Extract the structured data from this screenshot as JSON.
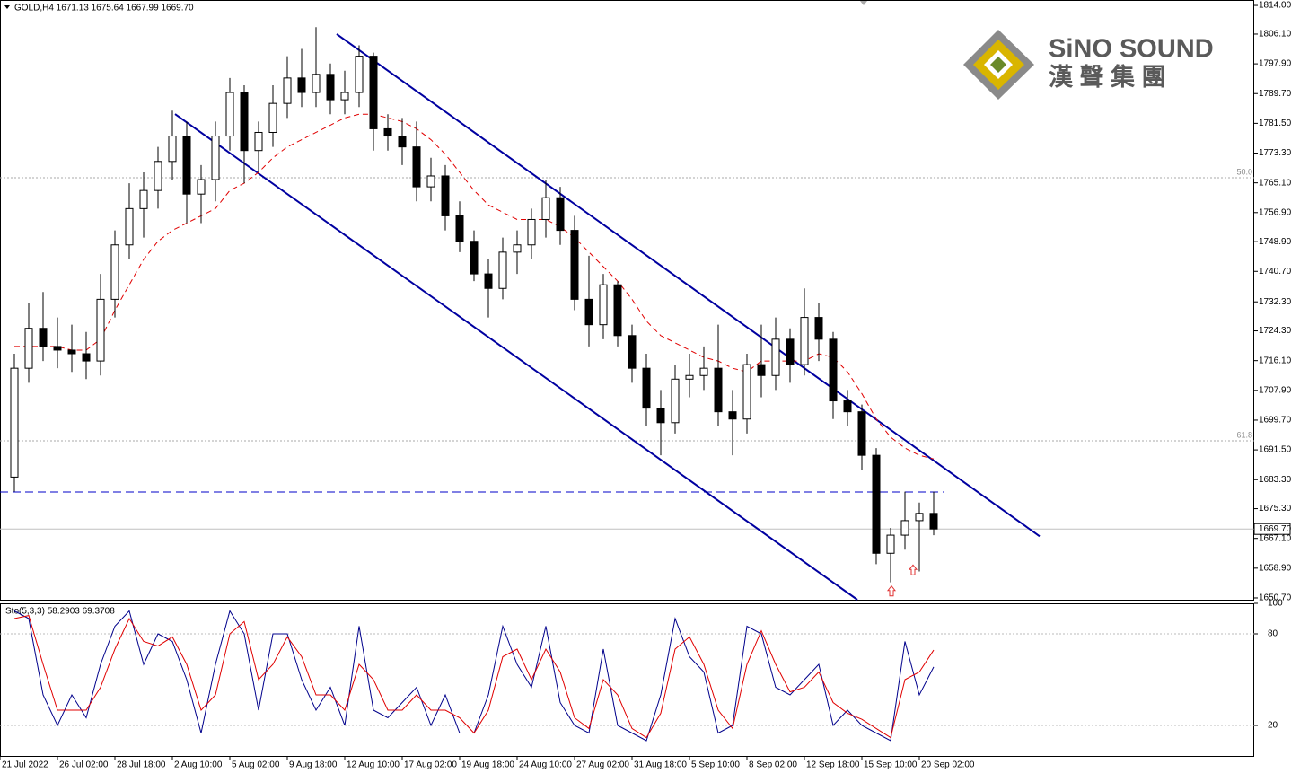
{
  "header": "GOLD,H4  1671.13 1675.64 1667.99 1669.70",
  "logo": {
    "name": "SiNO SOUND",
    "chinese": "漢 聲 集 團"
  },
  "chart_data": [
    {
      "type": "candlestick",
      "xlim": [
        0,
        349.25
      ],
      "ylim": [
        1650.2,
        1815.0
      ],
      "yticks": [
        {
          "value": 1650.7,
          "label": "1650.70"
        },
        {
          "value": 1658.9,
          "label": "1658.90"
        },
        {
          "value": 1667.1,
          "label": "1667.10"
        },
        {
          "value": 1675.3,
          "label": "1675.30"
        },
        {
          "value": 1683.3,
          "label": "1683.30"
        },
        {
          "value": 1691.5,
          "label": "1691.50"
        },
        {
          "value": 1699.7,
          "label": "1699.70"
        },
        {
          "value": 1707.9,
          "label": "1707.90"
        },
        {
          "value": 1716.1,
          "label": "1716.10"
        },
        {
          "value": 1724.3,
          "label": "1724.30"
        },
        {
          "value": 1732.3,
          "label": "1732.30"
        },
        {
          "value": 1740.7,
          "label": "1740.70"
        },
        {
          "value": 1748.9,
          "label": "1748.90"
        },
        {
          "value": 1756.9,
          "label": "1756.90"
        },
        {
          "value": 1765.1,
          "label": "1765.10"
        },
        {
          "value": 1773.3,
          "label": "1773.30"
        },
        {
          "value": 1781.5,
          "label": "1781.50"
        },
        {
          "value": 1789.7,
          "label": "1789.70"
        },
        {
          "value": 1797.9,
          "label": "1797.90"
        },
        {
          "value": 1806.1,
          "label": "1806.10"
        },
        {
          "value": 1814.0,
          "label": "1814.00"
        }
      ],
      "x": [
        4,
        8,
        12,
        16,
        20,
        24,
        28,
        32,
        36,
        40,
        44,
        48,
        52,
        56,
        60,
        64,
        68,
        72,
        76,
        80,
        84,
        88,
        92,
        96,
        100,
        104,
        108,
        112,
        116,
        120,
        124,
        128,
        132,
        136,
        140,
        144,
        148,
        152,
        156,
        160,
        164,
        168,
        172,
        176,
        180,
        184,
        188,
        192,
        196,
        200,
        204,
        208,
        212,
        216,
        220,
        224,
        228,
        232,
        236,
        240,
        244,
        248,
        252,
        256,
        260
      ],
      "open": [
        1684,
        1714,
        1725,
        1720,
        1719,
        1718,
        1716,
        1733,
        1748,
        1758,
        1763,
        1771,
        1778,
        1762,
        1766,
        1778,
        1790,
        1774,
        1779,
        1787,
        1794,
        1790,
        1795,
        1788,
        1790,
        1800,
        1780,
        1778,
        1775,
        1764,
        1767,
        1756,
        1749,
        1740,
        1736,
        1746,
        1748,
        1755,
        1761,
        1752,
        1733,
        1726,
        1737,
        1723,
        1714,
        1703,
        1699,
        1711,
        1712,
        1714,
        1702,
        1700,
        1715,
        1712,
        1722,
        1715,
        1728,
        1722,
        1705,
        1702,
        1690,
        1663,
        1668,
        1672,
        1674
      ],
      "high": [
        1718,
        1732,
        1735,
        1728,
        1726,
        1724,
        1740,
        1752,
        1765,
        1768,
        1775,
        1785,
        1782,
        1770,
        1782,
        1794,
        1792,
        1782,
        1792,
        1800,
        1802,
        1808,
        1798,
        1796,
        1803,
        1801,
        1784,
        1783,
        1782,
        1772,
        1770,
        1760,
        1752,
        1744,
        1750,
        1752,
        1758,
        1766,
        1764,
        1756,
        1745,
        1740,
        1738,
        1726,
        1718,
        1708,
        1715,
        1718,
        1720,
        1726,
        1708,
        1718,
        1726,
        1728,
        1725,
        1736,
        1732,
        1724,
        1708,
        1704,
        1692,
        1670,
        1680,
        1677,
        1680
      ],
      "low": [
        1680,
        1710,
        1716,
        1714,
        1713,
        1711,
        1712,
        1728,
        1744,
        1750,
        1758,
        1766,
        1754,
        1754,
        1760,
        1774,
        1765,
        1768,
        1775,
        1783,
        1786,
        1786,
        1784,
        1784,
        1786,
        1774,
        1774,
        1770,
        1760,
        1760,
        1752,
        1746,
        1738,
        1728,
        1733,
        1740,
        1744,
        1750,
        1748,
        1730,
        1720,
        1722,
        1720,
        1710,
        1698,
        1690,
        1696,
        1706,
        1708,
        1698,
        1690,
        1696,
        1706,
        1708,
        1710,
        1712,
        1716,
        1700,
        1698,
        1686,
        1660,
        1655,
        1664,
        1658,
        1668
      ],
      "close": [
        1714,
        1725,
        1720,
        1719,
        1718,
        1716,
        1733,
        1748,
        1758,
        1763,
        1771,
        1778,
        1762,
        1766,
        1778,
        1790,
        1774,
        1779,
        1787,
        1794,
        1790,
        1795,
        1788,
        1790,
        1800,
        1780,
        1778,
        1775,
        1764,
        1767,
        1756,
        1749,
        1740,
        1736,
        1746,
        1748,
        1755,
        1761,
        1752,
        1733,
        1726,
        1737,
        1723,
        1714,
        1703,
        1699,
        1711,
        1712,
        1714,
        1702,
        1700,
        1715,
        1712,
        1722,
        1715,
        1728,
        1722,
        1705,
        1702,
        1690,
        1663,
        1668,
        1672,
        1674,
        1669.7
      ],
      "moving_average": {
        "color": "#e00000",
        "values": [
          1720,
          1720,
          1720,
          1720,
          1719,
          1719,
          1722,
          1730,
          1737,
          1744,
          1749,
          1752,
          1754,
          1756,
          1758,
          1763,
          1765,
          1768,
          1772,
          1775,
          1777,
          1779,
          1781,
          1783,
          1784,
          1784,
          1783,
          1782,
          1780,
          1777,
          1773,
          1768,
          1763,
          1759,
          1757,
          1755,
          1755,
          1755,
          1753,
          1750,
          1746,
          1742,
          1738,
          1733,
          1727,
          1723,
          1721,
          1719,
          1717,
          1716,
          1714,
          1713,
          1716,
          1716,
          1716,
          1716,
          1718,
          1717,
          1713,
          1707,
          1700,
          1695,
          1692,
          1690,
          1689
        ]
      },
      "trend_lines": [
        {
          "color": "#0000a0",
          "x": [
            93.75,
            289.5
          ],
          "y": [
            1806.1,
            1667.7
          ]
        },
        {
          "color": "#0000a0",
          "x": [
            48.75,
            238.75
          ],
          "y": [
            1784.05,
            1650.2
          ]
        }
      ],
      "dashed_level": {
        "color": "#0000c8",
        "x": [
          0,
          263
        ],
        "y": 1679.9
      },
      "fib_levels": [
        {
          "label": "50.0",
          "value": 1766.5
        },
        {
          "label": "61.8",
          "value": 1694.0
        }
      ],
      "current_price": {
        "value": 1669.7,
        "label": "1669.70"
      },
      "arrows": {
        "color": "#e03030",
        "x": [
          248.25,
          254.25
        ],
        "y": [
          1652.5,
          1658.3
        ]
      }
    },
    {
      "type": "line",
      "title": "Sto(5,3,3) 58.2903 69.3708",
      "xlim": [
        0,
        349.25
      ],
      "ylim": [
        0,
        100
      ],
      "yticks": [
        20,
        80,
        100
      ],
      "xticks": [
        {
          "value": 0,
          "label": "21 Jul 2022"
        },
        {
          "value": 16,
          "label": "26 Jul 02:00"
        },
        {
          "value": 32,
          "label": "28 Jul 18:00"
        },
        {
          "value": 48,
          "label": "2 Aug 10:00"
        },
        {
          "value": 64,
          "label": "5 Aug 02:00"
        },
        {
          "value": 80,
          "label": "9 Aug 18:00"
        },
        {
          "value": 96,
          "label": "12 Aug 10:00"
        },
        {
          "value": 112,
          "label": "17 Aug 02:00"
        },
        {
          "value": 128,
          "label": "19 Aug 18:00"
        },
        {
          "value": 144,
          "label": "24 Aug 10:00"
        },
        {
          "value": 160,
          "label": "27 Aug 02:00"
        },
        {
          "value": 176,
          "label": "31 Aug 18:00"
        },
        {
          "value": 192,
          "label": "5 Sep 10:00"
        },
        {
          "value": 208,
          "label": "8 Sep 02:00"
        },
        {
          "value": 224,
          "label": "12 Sep 18:00"
        },
        {
          "value": 240,
          "label": "15 Sep 10:00"
        },
        {
          "value": 256,
          "label": "20 Sep 02:00"
        }
      ],
      "x": [
        4,
        8,
        12,
        16,
        20,
        24,
        28,
        32,
        36,
        40,
        44,
        48,
        52,
        56,
        60,
        64,
        68,
        72,
        76,
        80,
        84,
        88,
        92,
        96,
        100,
        104,
        108,
        112,
        116,
        120,
        124,
        128,
        132,
        136,
        140,
        144,
        148,
        152,
        156,
        160,
        164,
        168,
        172,
        176,
        180,
        184,
        188,
        192,
        196,
        200,
        204,
        208,
        212,
        216,
        220,
        224,
        228,
        232,
        236,
        240,
        244,
        248,
        252,
        256,
        260
      ],
      "series": [
        {
          "color": "#00008b",
          "values": [
            95,
            90,
            40,
            20,
            40,
            25,
            60,
            85,
            95,
            60,
            80,
            75,
            50,
            15,
            60,
            95,
            80,
            30,
            80,
            80,
            50,
            30,
            45,
            20,
            85,
            30,
            25,
            35,
            45,
            20,
            40,
            15,
            15,
            40,
            85,
            60,
            45,
            85,
            35,
            20,
            15,
            70,
            20,
            15,
            10,
            40,
            90,
            65,
            55,
            15,
            20,
            85,
            80,
            45,
            40,
            50,
            60,
            20,
            30,
            20,
            15,
            10,
            75,
            40,
            58.2903
          ]
        },
        {
          "color": "#e00000",
          "values": [
            90,
            92,
            60,
            30,
            30,
            30,
            45,
            70,
            90,
            75,
            72,
            78,
            60,
            30,
            40,
            80,
            88,
            50,
            60,
            78,
            65,
            40,
            40,
            30,
            60,
            50,
            30,
            30,
            40,
            30,
            30,
            25,
            15,
            30,
            65,
            70,
            50,
            70,
            55,
            25,
            18,
            50,
            40,
            18,
            12,
            28,
            70,
            78,
            60,
            30,
            18,
            60,
            82,
            60,
            42,
            45,
            55,
            35,
            28,
            24,
            18,
            12,
            50,
            55,
            69.3708
          ]
        }
      ]
    }
  ]
}
